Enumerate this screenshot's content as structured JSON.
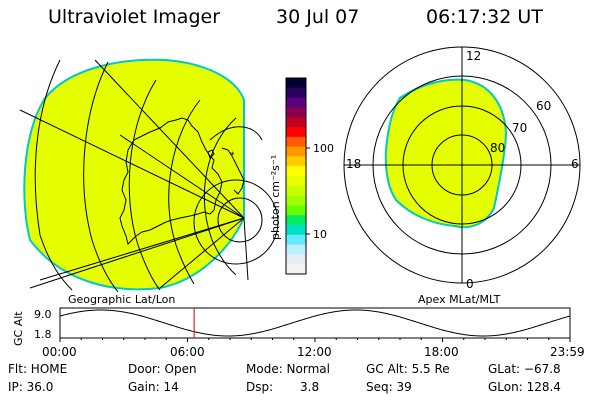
{
  "header": {
    "title": "Ultraviolet Imager",
    "date": "30 Jul 07",
    "time": "06:17:32 UT"
  },
  "colorbar": {
    "label_html": "photon cm⁻²s⁻¹",
    "tick_100": "100",
    "tick_10": "10",
    "colors": [
      "#000033",
      "#2a0060",
      "#5a007a",
      "#8a0050",
      "#c00020",
      "#ff0000",
      "#ff5a00",
      "#ff9900",
      "#ffcc00",
      "#ffff00",
      "#e8ff00",
      "#c8ff00",
      "#a0ff00",
      "#66ff00",
      "#00ee66",
      "#00e0c8",
      "#66e8ff",
      "#bbeeff",
      "#e6eef2",
      "#f2f2f2"
    ]
  },
  "geo_panel": {
    "label": "Geographic Lat/Lon",
    "fill_color": "#e6ff00",
    "edge_color": "#00c8c8"
  },
  "polar_panel": {
    "label": "Apex MLat/MLT",
    "mlt_12": "12",
    "mlt_18": "18",
    "mlt_6": "6",
    "mlt_0": "0",
    "lat_60": "60",
    "lat_70": "70",
    "lat_80": "80"
  },
  "altitude_plot": {
    "ylabel": "GC Alt",
    "ymax": "9.0",
    "ymin": "1.8",
    "ticks": [
      "00:00",
      "06:00",
      "12:00",
      "18:00",
      "23:59"
    ],
    "marker_time_fraction": 0.263,
    "marker_color": "#dd0000"
  },
  "info": {
    "flt": "Flt: HOME",
    "door": "Door: Open",
    "mode": "Mode: Normal",
    "gcalt": "GC Alt: 5.5 Re",
    "glat": "GLat: −67.8",
    "ip": "IP: 36.0",
    "gain": "Gain: 14",
    "dsp_label": "Dsp:",
    "dsp_value": "3.8",
    "seq": "Seq: 39",
    "glon": "GLon: 128.4"
  }
}
